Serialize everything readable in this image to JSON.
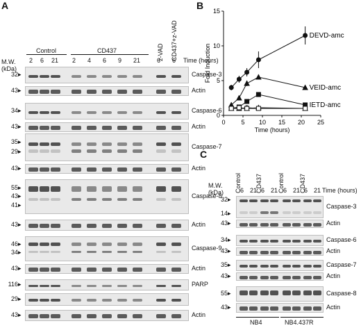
{
  "panels": {
    "A": "A",
    "B": "B",
    "C": "C"
  },
  "panelA": {
    "mw_label": "M.W.\n(kDa)",
    "time_label": "Time (hours)",
    "groups": [
      "Control",
      "CD437",
      "z-VAD",
      "CD437+z-VAD"
    ],
    "times": [
      "2",
      "6",
      "21",
      "2",
      "4",
      "6",
      "9",
      "21",
      "6",
      "6"
    ],
    "blots": [
      {
        "label": "Caspase-3",
        "mw": [
          "32"
        ]
      },
      {
        "label": "Actin",
        "mw": [
          "43"
        ]
      },
      {
        "label": "Caspase-6",
        "mw": [
          "34"
        ]
      },
      {
        "label": "Actin",
        "mw": [
          "43"
        ]
      },
      {
        "label": "Caspase-7",
        "mw": [
          "35",
          "29"
        ]
      },
      {
        "label": "Actin",
        "mw": [
          "43"
        ]
      },
      {
        "label": "Caspase-8",
        "mw": [
          "55",
          "43",
          "41"
        ]
      },
      {
        "label": "Actin",
        "mw": [
          "43"
        ]
      },
      {
        "label": "Caspase-9",
        "mw": [
          "46",
          "34"
        ]
      },
      {
        "label": "Actin",
        "mw": [
          "43"
        ]
      },
      {
        "label": "PARP",
        "mw": [
          "116"
        ]
      },
      {
        "label": "",
        "mw": [
          "29"
        ]
      },
      {
        "label": "Actin",
        "mw": [
          "43"
        ]
      }
    ]
  },
  "panelC": {
    "mw_label": "M.W.\n(kDa)",
    "time_label": "Time (hours)",
    "groups": [
      "Control",
      "CD437",
      "Control",
      "CD437"
    ],
    "times": [
      "6",
      "21",
      "6",
      "21",
      "6",
      "21",
      "6",
      "21"
    ],
    "cell_lines": [
      "NB4",
      "NB4.437R"
    ],
    "blots": [
      {
        "label": "Caspase-3",
        "mw": [
          "32",
          "14"
        ]
      },
      {
        "label": "Actin",
        "mw": [
          "43"
        ]
      },
      {
        "label": "Caspase-6",
        "mw": [
          "34"
        ]
      },
      {
        "label": "Actin",
        "mw": [
          "43"
        ]
      },
      {
        "label": "Caspase-7",
        "mw": [
          "35"
        ]
      },
      {
        "label": "Actin",
        "mw": [
          "43"
        ]
      },
      {
        "label": "Caspase-8",
        "mw": [
          "55"
        ]
      },
      {
        "label": "Actin",
        "mw": [
          "43"
        ]
      }
    ]
  },
  "chart_data": {
    "type": "line",
    "xlabel": "Time (hours)",
    "ylabel": "Fold Induction",
    "xlim": [
      0,
      25
    ],
    "ylim": [
      0,
      15
    ],
    "xticks": [
      0,
      5,
      10,
      15,
      20,
      25
    ],
    "yticks": [
      0,
      5,
      10,
      15
    ],
    "x": [
      2,
      4,
      6,
      9,
      21
    ],
    "series": [
      {
        "name": "DEVD-amc",
        "marker": "circle-filled",
        "values": [
          4.0,
          5.2,
          6.2,
          8.0,
          11.5
        ],
        "errors": [
          0.4,
          0.5,
          0.6,
          1.2,
          1.3
        ]
      },
      {
        "name": "VEID-amc",
        "marker": "triangle-filled",
        "values": [
          1.5,
          2.5,
          4.6,
          5.5,
          4.0
        ],
        "errors": [
          0.3,
          0.3,
          0.4,
          0.3,
          0.3
        ]
      },
      {
        "name": "IETD-amc",
        "marker": "square-filled",
        "values": [
          1.0,
          1.2,
          2.0,
          3.0,
          1.5
        ],
        "errors": [
          0.2,
          0.2,
          0.3,
          0.3,
          0.2
        ]
      },
      {
        "name": "",
        "marker": "circle-open",
        "values": [
          1.0,
          1.0,
          1.1,
          1.0,
          1.0
        ],
        "errors": [
          0.1,
          0.1,
          0.1,
          0.1,
          0.1
        ]
      },
      {
        "name": "",
        "marker": "triangle-open",
        "values": [
          1.0,
          1.0,
          1.0,
          1.1,
          1.0
        ],
        "errors": [
          0.1,
          0.1,
          0.1,
          0.1,
          0.1
        ]
      },
      {
        "name": "",
        "marker": "square-open",
        "values": [
          1.0,
          1.1,
          1.0,
          1.0,
          1.0
        ],
        "errors": [
          0.1,
          0.1,
          0.1,
          0.1,
          0.1
        ]
      }
    ]
  }
}
